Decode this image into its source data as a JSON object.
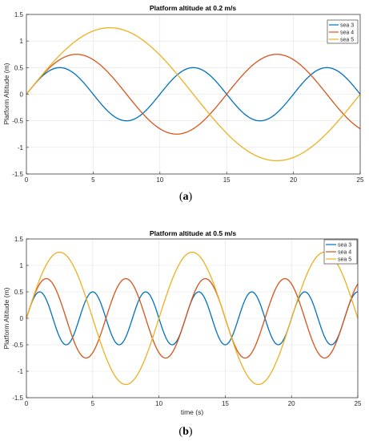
{
  "chart_data": [
    {
      "type": "line",
      "title": "Platform altitude at 0.2 m/s",
      "xlabel": "",
      "ylabel": "Platform Altitude (m)",
      "xlim": [
        0,
        25
      ],
      "ylim": [
        -1.5,
        1.5
      ],
      "xticks": [
        "0",
        "5",
        "10",
        "15",
        "20",
        "25"
      ],
      "yticks": [
        "-1.5",
        "-1",
        "-0.5",
        "0",
        "0.5",
        "1",
        "1.5"
      ],
      "grid": true,
      "legend_position": "top-right",
      "caption": "(a)",
      "series": [
        {
          "name": "sea 3",
          "color": "#0072BD",
          "amplitude": 0.5,
          "period": 10,
          "x_start": 0,
          "x_end": 25,
          "x": [
            0,
            2.5,
            5,
            7.5,
            10,
            12.5,
            15,
            17.5,
            20,
            22.5,
            25
          ],
          "values": [
            0,
            0.5,
            0,
            -0.5,
            0,
            0.5,
            0,
            -0.5,
            0,
            0.5,
            0
          ]
        },
        {
          "name": "sea 4",
          "color": "#D95319",
          "amplitude": 0.75,
          "period": 15,
          "x_start": 0,
          "x_end": 25,
          "x": [
            0,
            3.75,
            7.5,
            11.25,
            15,
            18.75,
            22.5,
            25
          ],
          "values": [
            0,
            0.75,
            0,
            -0.75,
            0,
            0.75,
            0,
            -0.65
          ]
        },
        {
          "name": "sea 5",
          "color": "#EDB120",
          "amplitude": 1.25,
          "period": 25,
          "x_start": 0,
          "x_end": 25,
          "x": [
            0,
            6.25,
            12.5,
            18.75,
            25
          ],
          "values": [
            0,
            1.25,
            0,
            -1.25,
            0
          ]
        }
      ]
    },
    {
      "type": "line",
      "title": "Platform altitude at 0.5 m/s",
      "xlabel": "time (s)",
      "ylabel": "Platform Altitude (m)",
      "xlim": [
        0,
        25
      ],
      "ylim": [
        -1.5,
        1.5
      ],
      "xticks": [
        "0",
        "5",
        "10",
        "15",
        "20",
        "25"
      ],
      "yticks": [
        "-1.5",
        "-1",
        "-0.5",
        "0",
        "0.5",
        "1",
        "1.5"
      ],
      "grid": true,
      "legend_position": "top-right",
      "caption": "(b)",
      "series": [
        {
          "name": "sea 3",
          "color": "#0072BD",
          "amplitude": 0.5,
          "period": 4,
          "x_start": 0,
          "x_end": 25,
          "x": [
            0,
            1,
            2,
            3,
            4,
            5,
            6,
            7,
            8
          ],
          "values": [
            0,
            0.5,
            0,
            -0.5,
            0,
            0.5,
            0,
            -0.5,
            0
          ]
        },
        {
          "name": "sea 4",
          "color": "#D95319",
          "amplitude": 0.75,
          "period": 6,
          "x_start": 0,
          "x_end": 25,
          "x": [
            0,
            1.5,
            3,
            4.5,
            6,
            7.5,
            9
          ],
          "values": [
            0,
            0.75,
            0,
            -0.75,
            0,
            0.75,
            0
          ]
        },
        {
          "name": "sea 5",
          "color": "#EDB120",
          "amplitude": 1.25,
          "period": 10,
          "x_start": 0,
          "x_end": 25,
          "x": [
            0,
            2.5,
            5,
            7.5,
            10,
            12.5,
            15,
            17.5,
            20,
            22.5,
            25
          ],
          "values": [
            0,
            1.25,
            0,
            -1.25,
            0,
            1.25,
            0,
            -1.25,
            0,
            1.25,
            0
          ]
        }
      ]
    }
  ]
}
